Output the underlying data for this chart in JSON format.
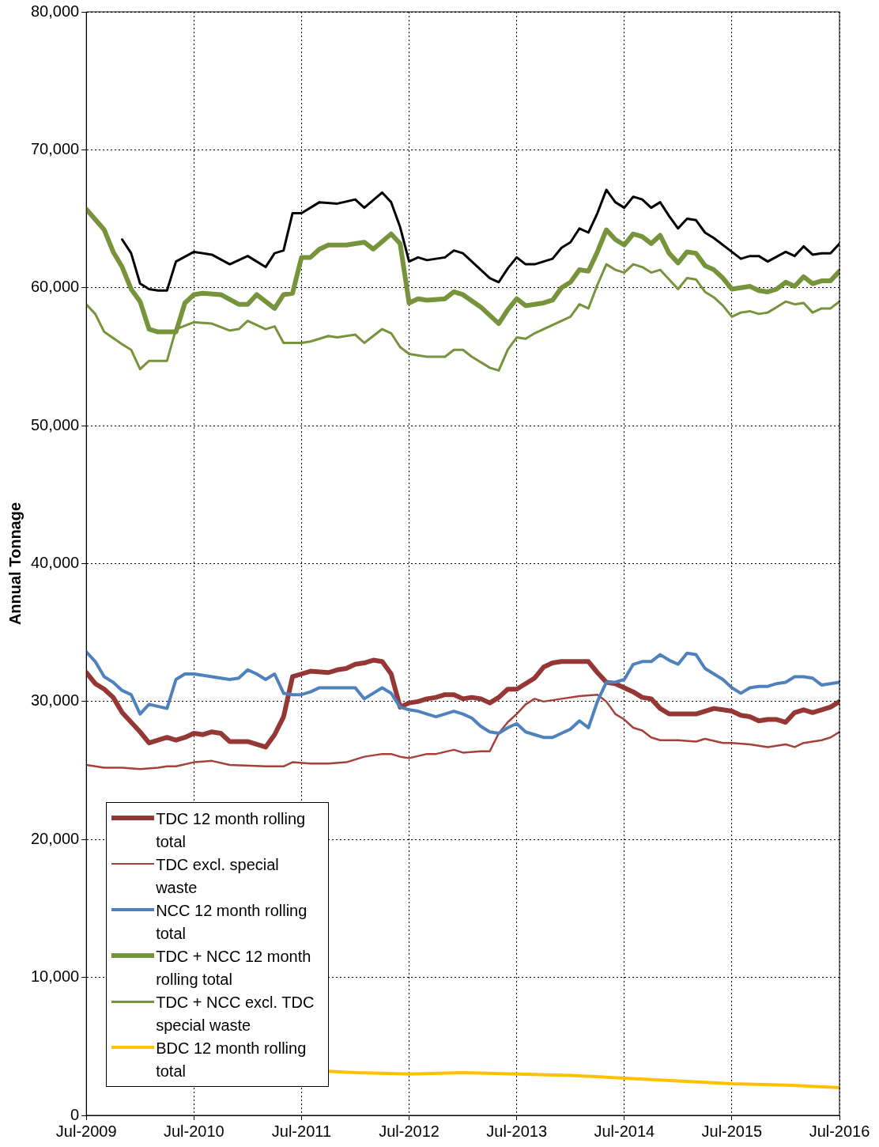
{
  "chart_data": {
    "type": "line",
    "ylabel": "Annual Tonnage",
    "xlim": [
      "2009-07",
      "2016-07"
    ],
    "xticks": [
      {
        "value": "2009-07",
        "label": "Jul-2009"
      },
      {
        "value": "2010-07",
        "label": "Jul-2010"
      },
      {
        "value": "2011-07",
        "label": "Jul-2011"
      },
      {
        "value": "2012-07",
        "label": "Jul-2012"
      },
      {
        "value": "2013-07",
        "label": "Jul-2013"
      },
      {
        "value": "2014-07",
        "label": "Jul-2014"
      },
      {
        "value": "2015-07",
        "label": "Jul-2015"
      },
      {
        "value": "2016-07",
        "label": "Jul-2016"
      }
    ],
    "ylim": [
      0,
      80000
    ],
    "yticks": [
      {
        "value": 0,
        "label": "0"
      },
      {
        "value": 10000,
        "label": "10,000"
      },
      {
        "value": 20000,
        "label": "20,000"
      },
      {
        "value": 30000,
        "label": "30,000"
      },
      {
        "value": 40000,
        "label": "40,000"
      },
      {
        "value": 50000,
        "label": "50,000"
      },
      {
        "value": 60000,
        "label": "60,000"
      },
      {
        "value": 70000,
        "label": "70,000"
      },
      {
        "value": 80000,
        "label": "80,000"
      }
    ],
    "grid": true,
    "legend": "bottom left",
    "marker": "none",
    "line_style": "solid",
    "series": [
      {
        "name": "TDC 12 month rolling total",
        "color": "#953735",
        "x": [
          "2009-07",
          "2009-08",
          "2009-09",
          "2009-10",
          "2009-11",
          "2009-12",
          "2010-01",
          "2010-02",
          "2010-03",
          "2010-04",
          "2010-05",
          "2010-06",
          "2010-07",
          "2010-08",
          "2010-09",
          "2010-10",
          "2010-11",
          "2011-01",
          "2011-03",
          "2011-04",
          "2011-05",
          "2011-06",
          "2011-07",
          "2011-08",
          "2011-10",
          "2011-11",
          "2011-12",
          "2012-01",
          "2012-02",
          "2012-03",
          "2012-04",
          "2012-05",
          "2012-06",
          "2012-07",
          "2012-08",
          "2012-09",
          "2012-10",
          "2012-11",
          "2012-12",
          "2013-01",
          "2013-02",
          "2013-03",
          "2013-04",
          "2013-05",
          "2013-06",
          "2013-07",
          "2013-08",
          "2013-09",
          "2013-10",
          "2013-11",
          "2013-12",
          "2014-01",
          "2014-02",
          "2014-03",
          "2014-04",
          "2014-05",
          "2014-06",
          "2014-07",
          "2014-08",
          "2014-09",
          "2014-10",
          "2014-11",
          "2014-12",
          "2015-01",
          "2015-02",
          "2015-03",
          "2015-04",
          "2015-05",
          "2015-06",
          "2015-07",
          "2015-08",
          "2015-09",
          "2015-10",
          "2015-11",
          "2015-12",
          "2016-01",
          "2016-02",
          "2016-03",
          "2016-04",
          "2016-05",
          "2016-06",
          "2016-07"
        ],
        "values": [
          32100,
          31300,
          30900,
          30300,
          29200,
          28500,
          27800,
          27000,
          27200,
          27400,
          27200,
          27400,
          27700,
          27600,
          27800,
          27700,
          27100,
          27100,
          26700,
          27600,
          28900,
          31800,
          32000,
          32200,
          32100,
          32300,
          32400,
          32700,
          32800,
          33000,
          32900,
          32000,
          29600,
          29900,
          30000,
          30200,
          30300,
          30500,
          30500,
          30200,
          30300,
          30200,
          29900,
          30300,
          30900,
          30900,
          31300,
          31700,
          32500,
          32800,
          32900,
          32900,
          32900,
          32900,
          32100,
          31400,
          31300,
          31000,
          30700,
          30300,
          30200,
          29500,
          29100,
          29100,
          29100,
          29100,
          29300,
          29500,
          29400,
          29300,
          29000,
          28900,
          28600,
          28700,
          28700,
          28500,
          29200,
          29400,
          29200,
          29400,
          29600,
          30000
        ]
      },
      {
        "name": "TDC excl. special waste",
        "color": "#a5403a",
        "x": [
          "2009-07",
          "2009-09",
          "2009-11",
          "2010-01",
          "2010-03",
          "2010-04",
          "2010-05",
          "2010-07",
          "2010-09",
          "2010-11",
          "2011-03",
          "2011-05",
          "2011-06",
          "2011-08",
          "2011-10",
          "2011-12",
          "2012-02",
          "2012-04",
          "2012-05",
          "2012-06",
          "2012-07",
          "2012-09",
          "2012-10",
          "2012-12",
          "2013-01",
          "2013-03",
          "2013-04",
          "2013-05",
          "2013-06",
          "2013-07",
          "2013-08",
          "2013-09",
          "2013-10",
          "2013-12",
          "2014-02",
          "2014-04",
          "2014-05",
          "2014-06",
          "2014-07",
          "2014-08",
          "2014-09",
          "2014-10",
          "2014-11",
          "2015-01",
          "2015-03",
          "2015-04",
          "2015-06",
          "2015-07",
          "2015-09",
          "2015-11",
          "2016-01",
          "2016-02",
          "2016-03",
          "2016-05",
          "2016-06",
          "2016-07"
        ],
        "values": [
          25400,
          25200,
          25200,
          25100,
          25200,
          25300,
          25300,
          25600,
          25700,
          25400,
          25300,
          25300,
          25600,
          25500,
          25500,
          25600,
          26000,
          26200,
          26200,
          26000,
          25900,
          26200,
          26200,
          26500,
          26300,
          26400,
          26400,
          27700,
          28500,
          29100,
          29800,
          30200,
          30000,
          30200,
          30400,
          30500,
          30000,
          29100,
          28700,
          28100,
          27900,
          27400,
          27200,
          27200,
          27100,
          27300,
          27000,
          27000,
          26900,
          26700,
          26900,
          26700,
          27000,
          27200,
          27400,
          27800
        ]
      },
      {
        "name": "NCC 12 month rolling total",
        "color": "#4f81bd",
        "x": [
          "2009-07",
          "2009-08",
          "2009-09",
          "2009-10",
          "2009-11",
          "2009-12",
          "2010-01",
          "2010-02",
          "2010-04",
          "2010-05",
          "2010-06",
          "2010-07",
          "2010-09",
          "2010-11",
          "2010-12",
          "2011-01",
          "2011-02",
          "2011-03",
          "2011-04",
          "2011-05",
          "2011-06",
          "2011-07",
          "2011-08",
          "2011-09",
          "2011-11",
          "2012-01",
          "2012-02",
          "2012-03",
          "2012-04",
          "2012-05",
          "2012-06",
          "2012-07",
          "2012-08",
          "2012-09",
          "2012-10",
          "2012-11",
          "2012-12",
          "2013-01",
          "2013-02",
          "2013-03",
          "2013-04",
          "2013-05",
          "2013-06",
          "2013-07",
          "2013-08",
          "2013-09",
          "2013-10",
          "2013-11",
          "2013-12",
          "2014-01",
          "2014-02",
          "2014-03",
          "2014-04",
          "2014-05",
          "2014-06",
          "2014-07",
          "2014-08",
          "2014-09",
          "2014-10",
          "2014-11",
          "2014-12",
          "2015-01",
          "2015-02",
          "2015-03",
          "2015-04",
          "2015-05",
          "2015-06",
          "2015-07",
          "2015-08",
          "2015-09",
          "2015-10",
          "2015-11",
          "2015-12",
          "2016-01",
          "2016-02",
          "2016-03",
          "2016-04",
          "2016-05",
          "2016-06",
          "2016-07"
        ],
        "values": [
          33600,
          32900,
          31800,
          31400,
          30800,
          30500,
          29100,
          29800,
          29500,
          31600,
          32000,
          32000,
          31800,
          31600,
          31700,
          32300,
          32000,
          31600,
          32000,
          30600,
          30500,
          30500,
          30700,
          31000,
          31000,
          31000,
          30200,
          30600,
          31000,
          30600,
          29600,
          29400,
          29300,
          29100,
          28900,
          29100,
          29300,
          29100,
          28800,
          28200,
          27800,
          27700,
          28100,
          28400,
          27800,
          27600,
          27400,
          27400,
          27700,
          28000,
          28600,
          28100,
          30000,
          31400,
          31400,
          31600,
          32700,
          32900,
          32900,
          33400,
          33000,
          32700,
          33500,
          33400,
          32400,
          32000,
          31600,
          31000,
          30600,
          31000,
          31100,
          31100,
          31300,
          31400,
          31800,
          31800,
          31700,
          31200,
          31300,
          31400
        ]
      },
      {
        "name": "TDC + NCC 12 month rolling total",
        "color": "#77933c",
        "x": [
          "2009-07",
          "2009-09",
          "2009-10",
          "2009-11",
          "2009-12",
          "2010-01",
          "2010-02",
          "2010-03",
          "2010-05",
          "2010-06",
          "2010-07",
          "2010-08",
          "2010-10",
          "2010-12",
          "2011-01",
          "2011-02",
          "2011-04",
          "2011-05",
          "2011-06",
          "2011-07",
          "2011-08",
          "2011-09",
          "2011-10",
          "2011-12",
          "2012-02",
          "2012-03",
          "2012-05",
          "2012-06",
          "2012-07",
          "2012-08",
          "2012-09",
          "2012-11",
          "2012-12",
          "2013-01",
          "2013-03",
          "2013-05",
          "2013-06",
          "2013-07",
          "2013-08",
          "2013-10",
          "2013-11",
          "2013-12",
          "2014-01",
          "2014-02",
          "2014-03",
          "2014-04",
          "2014-05",
          "2014-06",
          "2014-07",
          "2014-08",
          "2014-09",
          "2014-10",
          "2014-11",
          "2014-12",
          "2015-01",
          "2015-02",
          "2015-03",
          "2015-04",
          "2015-05",
          "2015-06",
          "2015-07",
          "2015-08",
          "2015-09",
          "2015-10",
          "2015-11",
          "2015-12",
          "2016-01",
          "2016-02",
          "2016-03",
          "2016-04",
          "2016-05",
          "2016-06",
          "2016-07"
        ],
        "values": [
          65700,
          64200,
          62600,
          61500,
          59900,
          59000,
          57000,
          56800,
          56800,
          58900,
          59500,
          59600,
          59500,
          58800,
          58800,
          59500,
          58500,
          59500,
          59600,
          62200,
          62200,
          62800,
          63100,
          63100,
          63300,
          62800,
          63900,
          63200,
          58900,
          59200,
          59100,
          59200,
          59700,
          59500,
          58600,
          57400,
          58400,
          59200,
          58700,
          58900,
          59100,
          60000,
          60400,
          61300,
          61200,
          62600,
          64200,
          63500,
          63100,
          63900,
          63700,
          63200,
          63800,
          62500,
          61800,
          62600,
          62500,
          61600,
          61300,
          60700,
          59900,
          60000,
          60100,
          59800,
          59700,
          59900,
          60400,
          60100,
          60800,
          60300,
          60500,
          60500,
          61200
        ]
      },
      {
        "name": "TDC + NCC excl. TDC special waste",
        "color": "#77933c",
        "x": [
          "2009-07",
          "2009-08",
          "2009-09",
          "2009-11",
          "2009-12",
          "2010-01",
          "2010-02",
          "2010-04",
          "2010-05",
          "2010-07",
          "2010-09",
          "2010-11",
          "2010-12",
          "2011-01",
          "2011-03",
          "2011-04",
          "2011-05",
          "2011-07",
          "2011-08",
          "2011-10",
          "2011-11",
          "2012-01",
          "2012-02",
          "2012-04",
          "2012-05",
          "2012-06",
          "2012-07",
          "2012-09",
          "2012-11",
          "2012-12",
          "2013-01",
          "2013-02",
          "2013-04",
          "2013-05",
          "2013-06",
          "2013-07",
          "2013-08",
          "2013-09",
          "2013-11",
          "2014-01",
          "2014-02",
          "2014-03",
          "2014-04",
          "2014-05",
          "2014-06",
          "2014-07",
          "2014-08",
          "2014-09",
          "2014-10",
          "2014-11",
          "2014-12",
          "2015-01",
          "2015-02",
          "2015-03",
          "2015-04",
          "2015-05",
          "2015-06",
          "2015-07",
          "2015-08",
          "2015-09",
          "2015-10",
          "2015-11",
          "2015-12",
          "2016-01",
          "2016-02",
          "2016-03",
          "2016-04",
          "2016-05",
          "2016-06",
          "2016-07"
        ],
        "values": [
          58800,
          58100,
          56800,
          55900,
          55500,
          54100,
          54700,
          54700,
          57000,
          57500,
          57400,
          56900,
          57000,
          57600,
          57000,
          57200,
          56000,
          56000,
          56100,
          56500,
          56400,
          56600,
          56000,
          57000,
          56700,
          55700,
          55200,
          55000,
          55000,
          55500,
          55500,
          55000,
          54200,
          54000,
          55500,
          56400,
          56300,
          56700,
          57300,
          57900,
          58800,
          58500,
          60200,
          61700,
          61300,
          61100,
          61700,
          61500,
          61100,
          61300,
          60600,
          59900,
          60700,
          60600,
          59700,
          59300,
          58700,
          57900,
          58200,
          58300,
          58100,
          58200,
          58600,
          59000,
          58800,
          58900,
          58200,
          58500,
          58500,
          59000
        ]
      },
      {
        "name": "BDC 12 month rolling total",
        "color": "#ffc000",
        "x": [
          "2011-10",
          "2012-01",
          "2012-07",
          "2013-01",
          "2013-07",
          "2014-01",
          "2014-07",
          "2015-01",
          "2015-07",
          "2016-01",
          "2016-07"
        ],
        "values": [
          3200,
          3100,
          3000,
          3100,
          3000,
          2900,
          2700,
          2500,
          2300,
          2200,
          2000
        ]
      },
      {
        "color": "#000000",
        "x": [
          "2009-11",
          "2009-12",
          "2010-01",
          "2010-02",
          "2010-03",
          "2010-04",
          "2010-05",
          "2010-07",
          "2010-09",
          "2010-11",
          "2011-01",
          "2011-03",
          "2011-04",
          "2011-05",
          "2011-06",
          "2011-07",
          "2011-09",
          "2011-11",
          "2012-01",
          "2012-02",
          "2012-04",
          "2012-05",
          "2012-06",
          "2012-07",
          "2012-08",
          "2012-09",
          "2012-11",
          "2012-12",
          "2013-01",
          "2013-03",
          "2013-04",
          "2013-05",
          "2013-06",
          "2013-07",
          "2013-08",
          "2013-09",
          "2013-11",
          "2013-12",
          "2014-01",
          "2014-02",
          "2014-03",
          "2014-04",
          "2014-05",
          "2014-06",
          "2014-07",
          "2014-08",
          "2014-09",
          "2014-10",
          "2014-11",
          "2014-12",
          "2015-01",
          "2015-02",
          "2015-03",
          "2015-04",
          "2015-05",
          "2015-07",
          "2015-08",
          "2015-09",
          "2015-10",
          "2015-11",
          "2016-01",
          "2016-02",
          "2016-03",
          "2016-04",
          "2016-05",
          "2016-06",
          "2016-07"
        ],
        "values": [
          63500,
          62500,
          60300,
          59900,
          59800,
          59800,
          61900,
          62600,
          62400,
          61700,
          62300,
          61500,
          62500,
          62700,
          65400,
          65400,
          66200,
          66100,
          66400,
          65800,
          66900,
          66200,
          64400,
          61900,
          62200,
          62000,
          62200,
          62700,
          62500,
          61300,
          60700,
          60400,
          61400,
          62200,
          61700,
          61700,
          62100,
          62900,
          63300,
          64300,
          64000,
          65400,
          67100,
          66200,
          65800,
          66600,
          66400,
          65800,
          66200,
          65200,
          64300,
          65000,
          64900,
          64000,
          63600,
          62600,
          62100,
          62300,
          62300,
          61900,
          62600,
          62300,
          63000,
          62400,
          62500,
          62500,
          63200
        ]
      }
    ]
  }
}
